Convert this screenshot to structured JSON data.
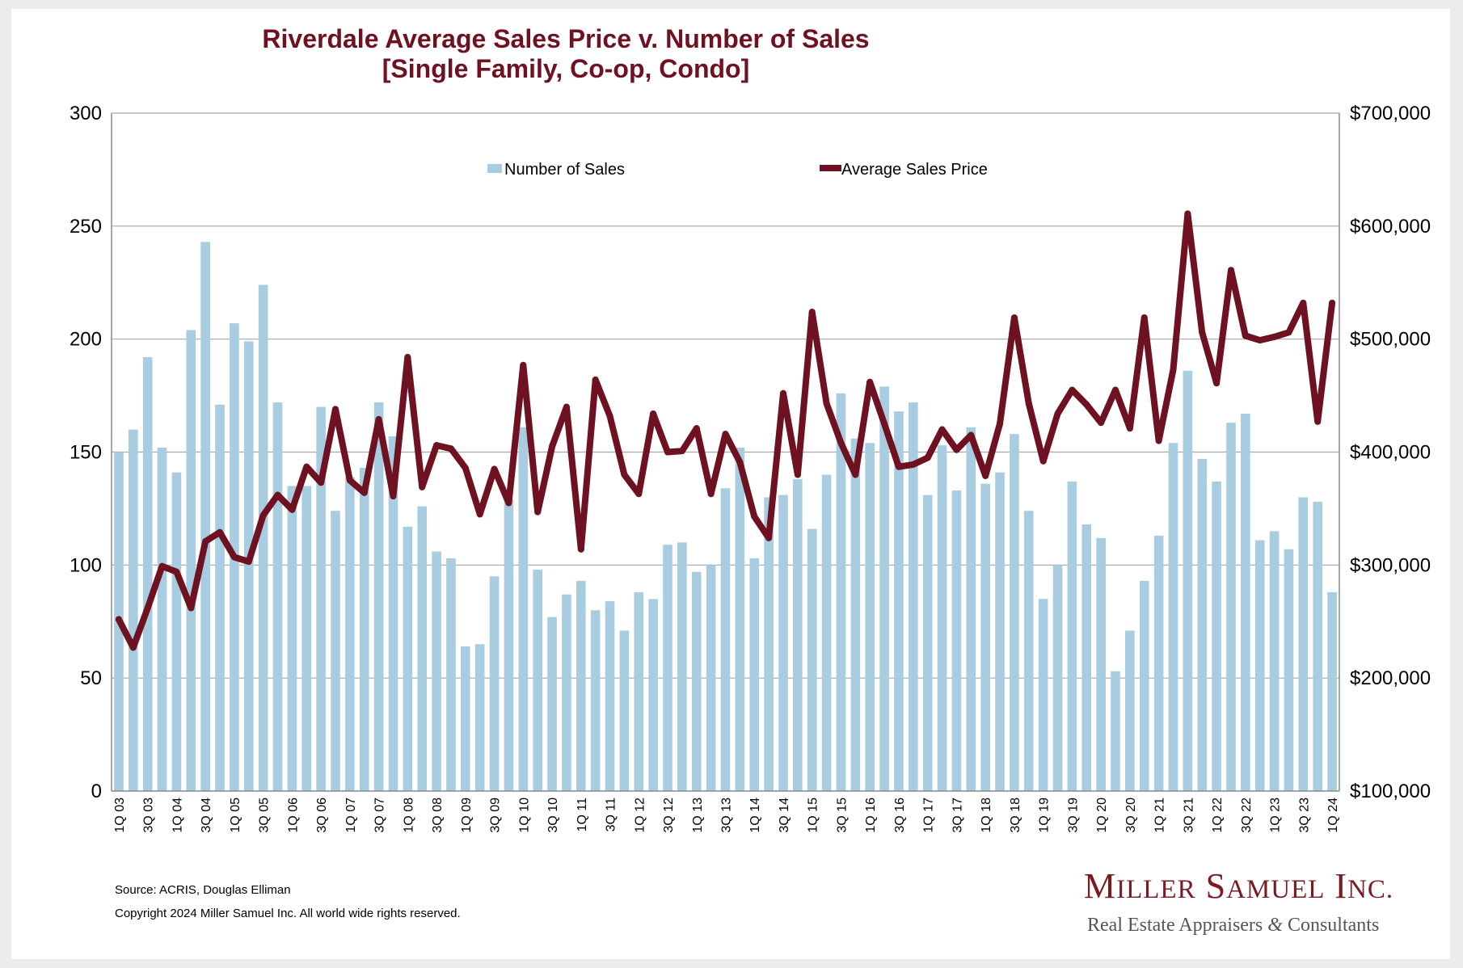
{
  "colors": {
    "bar": "#a8cde0",
    "line": "#6e1120",
    "title": "#6e1120",
    "grid": "#a6a6a6"
  },
  "chart_data": {
    "type": "bar+line",
    "title": "Riverdale Average Sales Price v. Number of Sales",
    "subtitle": "[Single Family, Co-op, Condo]",
    "y_left": {
      "min": 0,
      "max": 300,
      "ticks": [
        0,
        50,
        100,
        150,
        200,
        250,
        300
      ],
      "tick_labels": [
        "0",
        "50",
        "100",
        "150",
        "200",
        "250",
        "300"
      ]
    },
    "y_right": {
      "min": 100000,
      "max": 700000,
      "ticks": [
        100000,
        200000,
        300000,
        400000,
        500000,
        600000,
        700000
      ],
      "tick_labels": [
        "$100,000",
        "$200,000",
        "$300,000",
        "$400,000",
        "$500,000",
        "$600,000",
        "$700,000"
      ]
    },
    "x_tick_labels": [
      "1Q 03",
      "3Q 03",
      "1Q 04",
      "3Q 04",
      "1Q 05",
      "3Q 05",
      "1Q 06",
      "3Q 06",
      "1Q 07",
      "3Q 07",
      "1Q 08",
      "3Q 08",
      "1Q 09",
      "3Q 09",
      "1Q 10",
      "3Q 10",
      "1Q 11",
      "3Q 11",
      "1Q 12",
      "3Q 12",
      "1Q 13",
      "3Q 13",
      "1Q 14",
      "3Q 14",
      "1Q 15",
      "3Q 15",
      "1Q 16",
      "3Q 16",
      "1Q 17",
      "3Q 17",
      "1Q 18",
      "3Q 18",
      "1Q 19",
      "3Q 19",
      "1Q 20",
      "3Q 20",
      "1Q 21",
      "3Q 21",
      "1Q 22",
      "3Q 22",
      "1Q 23",
      "3Q 23",
      "1Q 24"
    ],
    "legend": {
      "placement": "top-center"
    },
    "series": [
      {
        "name": "Number of Sales",
        "type": "bar",
        "axis": "left",
        "values": [
          150,
          160,
          192,
          152,
          141,
          204,
          243,
          171,
          207,
          199,
          224,
          172,
          135,
          135,
          170,
          124,
          139,
          143,
          172,
          157,
          117,
          126,
          106,
          103,
          64,
          65,
          95,
          129,
          161,
          98,
          77,
          87,
          93,
          80,
          84,
          71,
          88,
          85,
          109,
          110,
          97,
          100,
          134,
          152,
          103,
          130,
          131,
          138,
          116,
          140,
          176,
          156,
          154,
          179,
          168,
          172,
          131,
          153,
          133,
          161,
          136,
          141,
          158,
          124,
          85,
          100,
          137,
          118,
          112,
          53,
          71,
          93,
          113,
          154,
          186,
          147,
          137,
          163,
          167,
          111,
          115,
          107,
          130,
          128,
          88
        ]
      },
      {
        "name": "Average Sales Price",
        "type": "line",
        "axis": "right",
        "values": [
          252000,
          227000,
          262000,
          299000,
          294000,
          262000,
          321000,
          329000,
          307000,
          303000,
          344000,
          362000,
          349000,
          387000,
          373000,
          438000,
          375000,
          364000,
          429000,
          361000,
          484000,
          369000,
          406000,
          403000,
          386000,
          345000,
          385000,
          355000,
          477000,
          347000,
          405000,
          440000,
          314000,
          464000,
          432000,
          380000,
          363000,
          434000,
          400000,
          401000,
          421000,
          363000,
          416000,
          391000,
          343000,
          324000,
          452000,
          380000,
          524000,
          443000,
          408000,
          380000,
          462000,
          425000,
          387000,
          389000,
          395000,
          420000,
          402000,
          415000,
          379000,
          425000,
          519000,
          443000,
          392000,
          434000,
          455000,
          442000,
          426000,
          455000,
          421000,
          519000,
          410000,
          473000,
          611000,
          506000,
          461000,
          561000,
          503000,
          499000,
          502000,
          506000,
          532000,
          427000,
          532000
        ]
      }
    ]
  },
  "footer": {
    "source": "Source: ACRIS, Douglas Elliman",
    "copyright": "Copyright 2024 Miller Samuel Inc.  All world wide rights reserved."
  },
  "logo": {
    "name_initial_1": "M",
    "name_rest_1": "ILLER",
    "name_initial_2": "S",
    "name_rest_2": "AMUEL",
    "name_initial_3": "I",
    "name_rest_3": "NC.",
    "tagline_part1": "Real Estate Appraisers ",
    "tagline_amp": "&",
    "tagline_part2": " Consultants"
  }
}
